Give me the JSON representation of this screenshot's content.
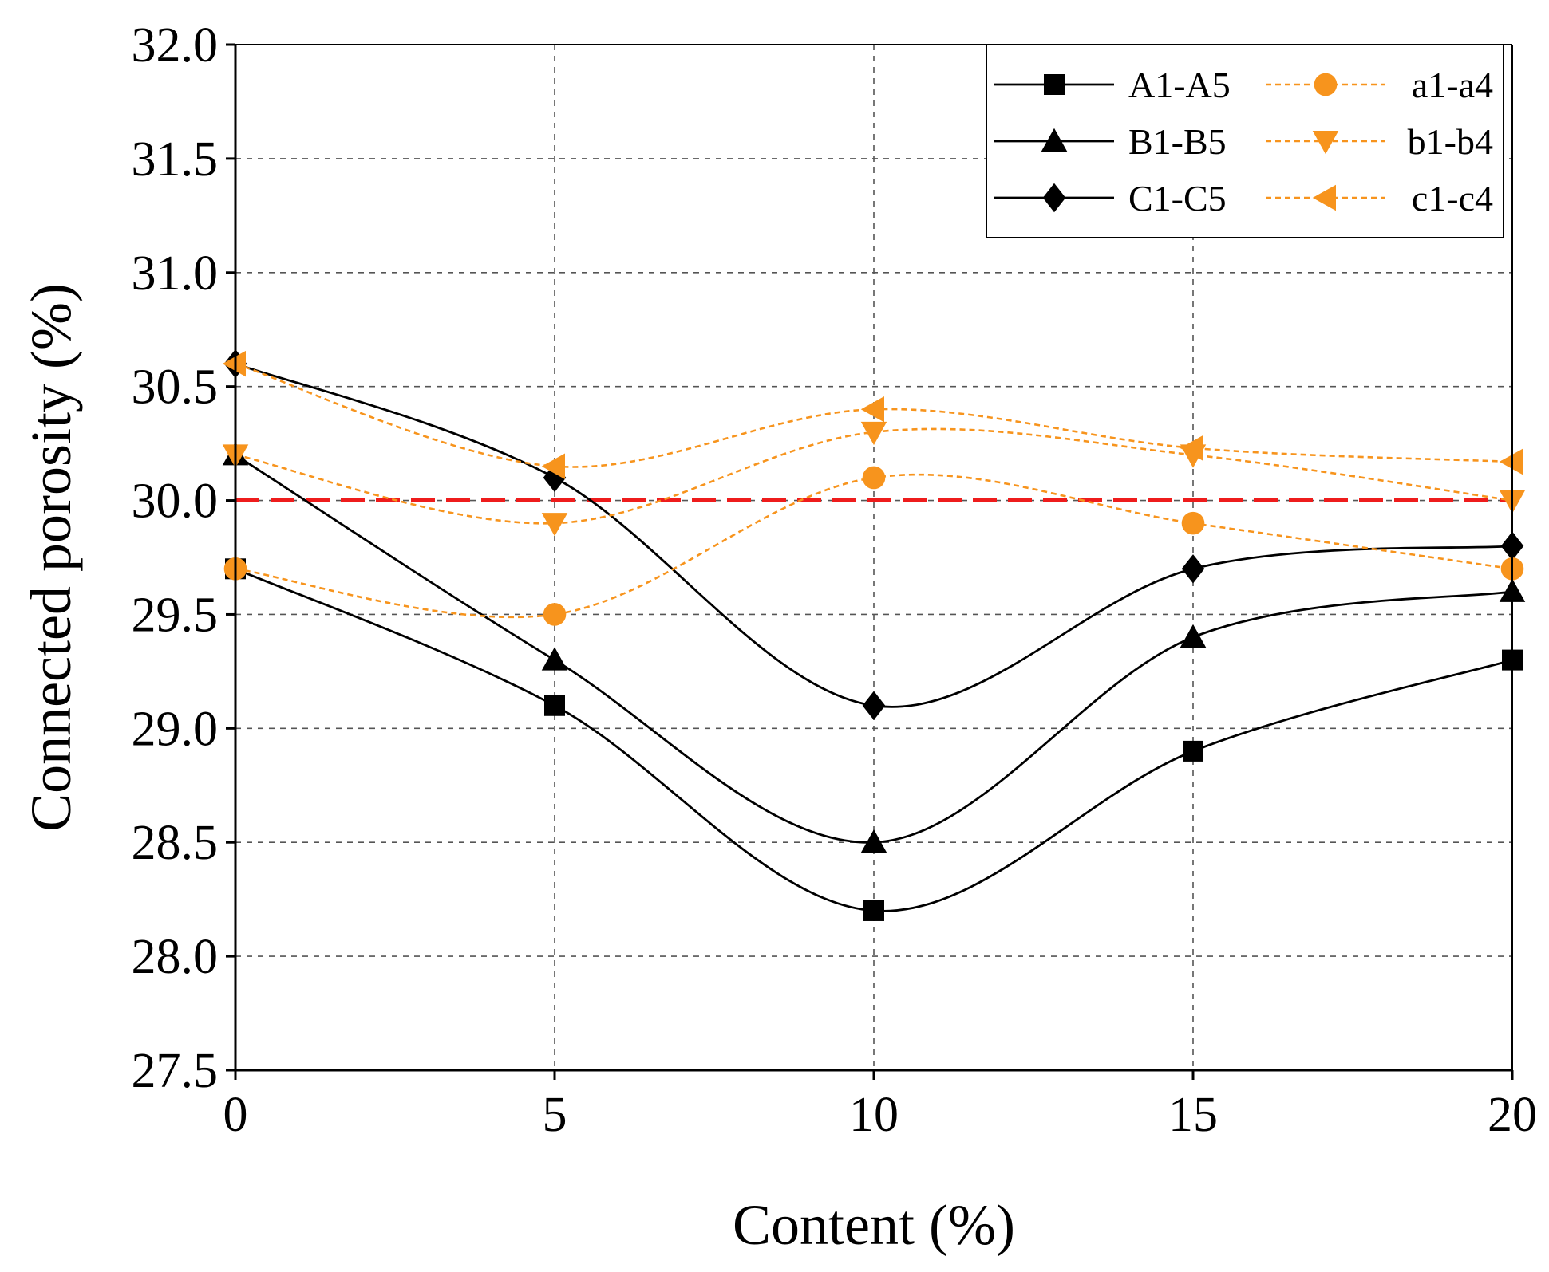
{
  "chart_data": {
    "type": "line",
    "xlabel": "Content (%)",
    "ylabel": "Connected porosity (%)",
    "xlim": [
      0,
      20
    ],
    "ylim": [
      27.5,
      32.0
    ],
    "x_ticks": [
      0,
      5,
      10,
      15,
      20
    ],
    "y_ticks": [
      27.5,
      28.0,
      28.5,
      29.0,
      29.5,
      30.0,
      30.5,
      31.0,
      31.5,
      32.0
    ],
    "x_tick_labels": [
      "0",
      "5",
      "10",
      "15",
      "20"
    ],
    "y_tick_labels": [
      "27.5",
      "28.0",
      "28.5",
      "29.0",
      "29.5",
      "30.0",
      "30.5",
      "31.0",
      "31.5",
      "32.0"
    ],
    "grid": true,
    "legend_position": "top-right",
    "reference_line": {
      "y": 30.0,
      "color": "#ee1c1c",
      "style": "dashed"
    },
    "x": [
      0,
      5,
      10,
      15,
      20
    ],
    "series": [
      {
        "name": "A1-A5",
        "marker": "square",
        "color": "#000000",
        "style": "solid",
        "values": [
          29.7,
          29.1,
          28.2,
          28.9,
          29.3
        ]
      },
      {
        "name": "B1-B5",
        "marker": "triangle-up",
        "color": "#000000",
        "style": "solid",
        "values": [
          30.2,
          29.3,
          28.5,
          29.4,
          29.6
        ]
      },
      {
        "name": "C1-C5",
        "marker": "diamond",
        "color": "#000000",
        "style": "solid",
        "values": [
          30.6,
          30.1,
          29.1,
          29.7,
          29.8
        ]
      },
      {
        "name": "a1-a4",
        "marker": "circle",
        "color": "#f7941d",
        "style": "dashed",
        "values": [
          29.7,
          29.5,
          30.1,
          29.9,
          29.7
        ]
      },
      {
        "name": "b1-b4",
        "marker": "triangle-down",
        "color": "#f7941d",
        "style": "dashed",
        "values": [
          30.2,
          29.9,
          30.3,
          30.2,
          30.0
        ]
      },
      {
        "name": "c1-c4",
        "marker": "triangle-left",
        "color": "#f7941d",
        "style": "dashed",
        "values": [
          30.6,
          30.15,
          30.4,
          30.23,
          30.17
        ]
      }
    ]
  }
}
